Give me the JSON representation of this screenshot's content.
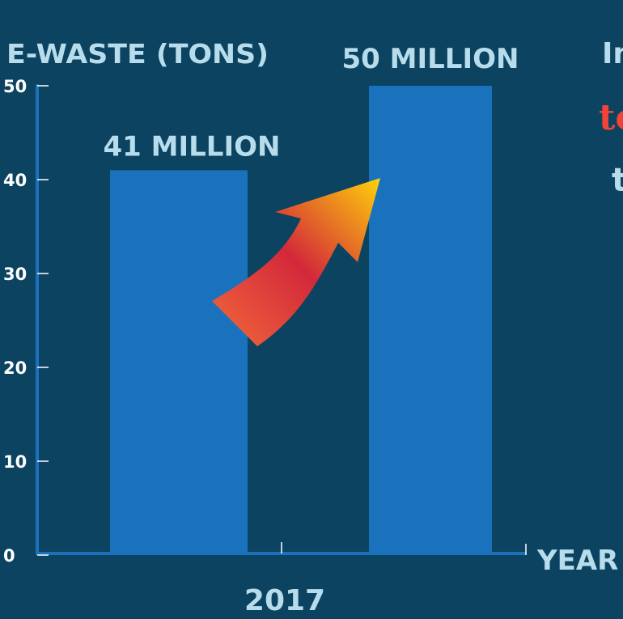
{
  "colors": {
    "background": "#0c4360",
    "bar": "#1a72bd",
    "axis": "#1a72bd",
    "label": "#b7ddec",
    "tick_text": "#ffffff",
    "accent_red": "#f0433a"
  },
  "chart_data": {
    "type": "bar",
    "ylabel": "E-WASTE (TONS)",
    "xlabel": "YEAR",
    "ylim": [
      0,
      50
    ],
    "yticks": [
      0,
      10,
      20,
      30,
      40,
      50
    ],
    "categories": [
      "",
      ""
    ],
    "values": [
      41,
      50
    ],
    "data_labels": [
      "41 MILLION",
      "50 MILLION"
    ],
    "x_tick_label": "2017",
    "annotation": "increase-arrow"
  },
  "cropped_text": {
    "line1": "In",
    "line2": "to",
    "line3": "t"
  }
}
